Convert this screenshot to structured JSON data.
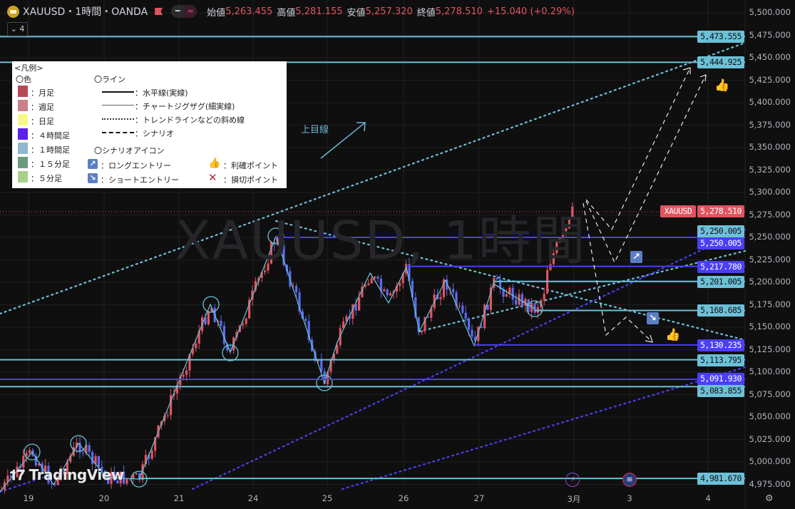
{
  "header": {
    "symbol_title": "XAUUSD・1時間・OANDA",
    "open_label": "始値",
    "open": "5,263.455",
    "high_label": "高値",
    "high": "5,281.155",
    "low_label": "安値",
    "low": "5,257.320",
    "close_label": "終値",
    "close": "5,278.510",
    "change": "+15.040 (+0.29%)",
    "indicator_count": "4"
  },
  "watermark": "XAUUSD, 1時間",
  "annotation": "上目線",
  "branding": "TradingView",
  "legend": {
    "title": "<凡例>",
    "color_heading": "〇色",
    "colors": [
      {
        "label": "：月足",
        "color": "#b84a57"
      },
      {
        "label": "：週足",
        "color": "#c98088"
      },
      {
        "label": "：日足",
        "color": "#f7f78a"
      },
      {
        "label": "：４時間足",
        "color": "#5b1ff0"
      },
      {
        "label": "：１時間足",
        "color": "#8fb8d0"
      },
      {
        "label": "：１５分足",
        "color": "#6b9a7e"
      },
      {
        "label": "：５分足",
        "color": "#a9d08a"
      }
    ],
    "line_heading": "〇ライン",
    "lines": [
      {
        "label": "：水平線(実線)",
        "style": "solid"
      },
      {
        "label": "：チャートジグザグ(細実線)",
        "style": "thin"
      },
      {
        "label": "：トレンドラインなどの斜め線",
        "style": "dotted"
      },
      {
        "label": "：シナリオ",
        "style": "dashed"
      }
    ],
    "icon_heading": "〇シナリオアイコン",
    "icons": [
      {
        "icon": "long-entry-icon",
        "label": "：ロングエントリー"
      },
      {
        "icon": "short-entry-icon",
        "label": "：ショートエントリー"
      },
      {
        "icon": "thumbs-up-icon",
        "label": "：利確ポイント"
      },
      {
        "icon": "x-icon",
        "label": "：損切ポイント"
      }
    ]
  },
  "price_axis": {
    "labels": [
      "5,500.000",
      "5,475.000",
      "5,450.000",
      "5,425.000",
      "5,400.000",
      "5,375.000",
      "5,350.000",
      "5,325.000",
      "5,300.000",
      "5,275.000",
      "5,250.000",
      "5,225.000",
      "5,200.000",
      "5,175.000",
      "5,150.000",
      "5,125.000",
      "5,100.000",
      "5,075.000",
      "5,050.000",
      "5,025.000",
      "5,000.000",
      "4,975.000"
    ],
    "min": 4975,
    "max": 5500
  },
  "current_price": {
    "symbol": "XAUUSD",
    "price": "5,278.510",
    "value": 5278.51,
    "color": "#e05460"
  },
  "levels": [
    {
      "price": 5473.555,
      "label": "5,473.555",
      "color": "#6cc0d8"
    },
    {
      "price": 5444.925,
      "label": "5,444.925",
      "color": "#6cc0d8"
    },
    {
      "price": 5250.005,
      "label": "5,250.005",
      "color": "#6cc0d8"
    },
    {
      "price": 5250.005,
      "label": "5,250.005",
      "color": "#4b3ff5"
    },
    {
      "price": 5217.78,
      "label": "5,217.780",
      "color": "#4b3ff5"
    },
    {
      "price": 5201.005,
      "label": "5,201.005",
      "color": "#6cc0d8"
    },
    {
      "price": 5168.685,
      "label": "5,168.685",
      "color": "#6cc0d8"
    },
    {
      "price": 5130.235,
      "label": "5,130.235",
      "color": "#4b3ff5"
    },
    {
      "price": 5113.795,
      "label": "5,113.795",
      "color": "#6cc0d8"
    },
    {
      "price": 5091.93,
      "label": "5,091.930",
      "color": "#4b3ff5"
    },
    {
      "price": 5083.855,
      "label": "5,083.855",
      "color": "#6cc0d8"
    },
    {
      "price": 4981.67,
      "label": "4,981.670",
      "color": "#6cc0d8"
    }
  ],
  "time_axis": {
    "labels": [
      "19",
      "20",
      "21",
      "24",
      "25",
      "26",
      "27",
      "3月",
      "3",
      "4"
    ]
  },
  "colors": {
    "up": "#e05460",
    "down": "#5a6cf0",
    "background": "#0f0f0f",
    "grid": "#1f1f22"
  }
}
